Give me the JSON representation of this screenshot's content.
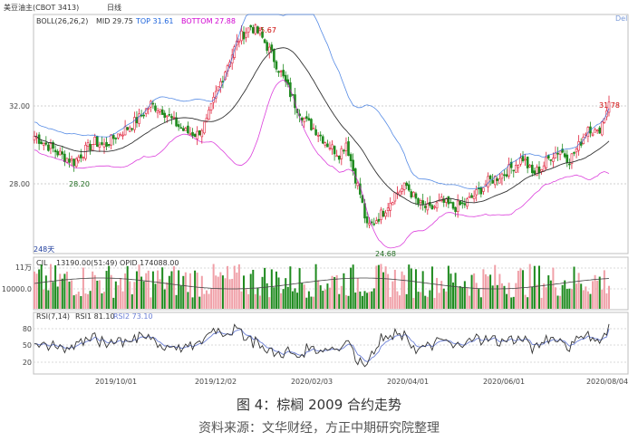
{
  "header": {
    "instrument": "美豆油主(CBOT 3413)",
    "period": "日线",
    "corner": "Del"
  },
  "boll": {
    "label": "BOLL(26,26,2)",
    "mid_label": "MID 29.75",
    "top_label": "TOP 31.61",
    "bottom_label": "BOTTOM 27.88",
    "colors": {
      "mid": "#333333",
      "top": "#1e64dc",
      "bottom": "#d000d0"
    }
  },
  "volume": {
    "label": "CJL",
    "values_label": "13190.00(51:49)",
    "opid_label": "OPID 174088.00",
    "y_ticks": [
      "11万",
      "10000.0"
    ]
  },
  "rsi": {
    "label": "RSI(7,14)",
    "rsi1_label": "RSI1 81.10",
    "rsi2_label": "RSI2 73.10",
    "y_ticks": [
      "80",
      "50",
      "20"
    ],
    "colors": {
      "rsi1": "#333333",
      "rsi2": "#6b7fd6"
    }
  },
  "chart_data": {
    "type": "candlestick",
    "y_ticks": [
      "32.00",
      "28.00"
    ],
    "ylim": [
      24.0,
      36.0
    ],
    "annotations": [
      "35.67",
      "28.20",
      "24.68",
      "31.78"
    ],
    "days_label": "248天",
    "x_tick_labels": [
      "2019/10/01",
      "2019/12/02",
      "2020/02/03",
      "2020/04/01",
      "2020/06/01",
      "2020/08/04"
    ],
    "anchor_prices": [
      [
        0,
        29.9
      ],
      [
        6,
        29.4
      ],
      [
        12,
        28.9
      ],
      [
        17,
        28.6
      ],
      [
        21,
        29.1
      ],
      [
        26,
        29.6
      ],
      [
        30,
        29.4
      ],
      [
        35,
        29.9
      ],
      [
        40,
        30.3
      ],
      [
        45,
        30.8
      ],
      [
        50,
        31.5
      ],
      [
        55,
        31.2
      ],
      [
        60,
        30.6
      ],
      [
        65,
        30.1
      ],
      [
        70,
        30.0
      ],
      [
        74,
        30.6
      ],
      [
        78,
        32.0
      ],
      [
        83,
        33.5
      ],
      [
        88,
        34.8
      ],
      [
        93,
        35.4
      ],
      [
        97,
        35.0
      ],
      [
        102,
        34.0
      ],
      [
        107,
        32.8
      ],
      [
        112,
        31.5
      ],
      [
        117,
        30.6
      ],
      [
        121,
        30.2
      ],
      [
        126,
        29.5
      ],
      [
        131,
        29.0
      ],
      [
        134,
        29.6
      ],
      [
        137,
        28.2
      ],
      [
        140,
        27.0
      ],
      [
        143,
        25.3
      ],
      [
        146,
        25.6
      ],
      [
        150,
        26.1
      ],
      [
        155,
        27.0
      ],
      [
        160,
        27.4
      ],
      [
        165,
        26.5
      ],
      [
        170,
        26.2
      ],
      [
        175,
        26.6
      ],
      [
        180,
        26.3
      ],
      [
        185,
        26.5
      ],
      [
        190,
        27.0
      ],
      [
        195,
        27.6
      ],
      [
        200,
        27.9
      ],
      [
        205,
        28.3
      ],
      [
        210,
        28.8
      ],
      [
        214,
        28.0
      ],
      [
        218,
        28.3
      ],
      [
        222,
        28.9
      ],
      [
        226,
        29.2
      ],
      [
        230,
        28.7
      ],
      [
        234,
        29.4
      ],
      [
        238,
        30.4
      ],
      [
        242,
        30.0
      ],
      [
        245,
        30.9
      ],
      [
        247,
        31.6
      ]
    ]
  },
  "caption": {
    "title": "图 4：棕榈 2009 合约走势",
    "source": "资料来源：文华财经，方正中期研究院整理"
  }
}
